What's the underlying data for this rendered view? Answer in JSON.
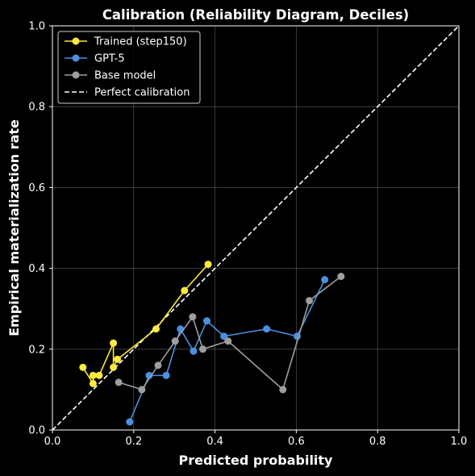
{
  "chart_data": {
    "type": "line",
    "title": "Calibration (Reliability Diagram, Deciles)",
    "xlabel": "Predicted probability",
    "ylabel": "Empirical materialization rate",
    "xlim": [
      0,
      1
    ],
    "ylim": [
      0,
      1
    ],
    "xticks": [
      "0.0",
      "0.2",
      "0.4",
      "0.6",
      "0.8",
      "1.0"
    ],
    "yticks": [
      "0.0",
      "0.2",
      "0.4",
      "0.6",
      "0.8",
      "1.0"
    ],
    "grid": true,
    "legend_position": "top-left",
    "series": [
      {
        "name": "Trained (step150)",
        "color": "#ffeb3b",
        "x": [
          0.075,
          0.1,
          0.1,
          0.115,
          0.15,
          0.15,
          0.16,
          0.255,
          0.325,
          0.383
        ],
        "y": [
          0.155,
          0.115,
          0.135,
          0.135,
          0.215,
          0.155,
          0.175,
          0.25,
          0.345,
          0.41
        ]
      },
      {
        "name": "GPT-5",
        "color": "#4a90e2",
        "x": [
          0.19,
          0.238,
          0.28,
          0.315,
          0.347,
          0.38,
          0.422,
          0.527,
          0.602,
          0.67
        ],
        "y": [
          0.02,
          0.135,
          0.135,
          0.25,
          0.195,
          0.27,
          0.232,
          0.25,
          0.232,
          0.372
        ]
      },
      {
        "name": "Base model",
        "color": "#9e9e9e",
        "x": [
          0.163,
          0.22,
          0.26,
          0.302,
          0.345,
          0.37,
          0.432,
          0.567,
          0.632,
          0.71
        ],
        "y": [
          0.118,
          0.1,
          0.16,
          0.22,
          0.28,
          0.2,
          0.22,
          0.1,
          0.32,
          0.38
        ]
      },
      {
        "name": "Perfect calibration",
        "color": "#ffffff",
        "dashed": true,
        "x": [
          0,
          1
        ],
        "y": [
          0,
          1
        ]
      }
    ]
  }
}
